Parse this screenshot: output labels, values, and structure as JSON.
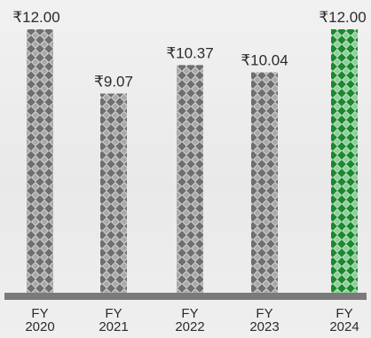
{
  "chart_data": {
    "type": "bar",
    "categories": [
      "FY 2020",
      "FY 2021",
      "FY 2022",
      "FY 2023",
      "FY 2024"
    ],
    "tick_lines": [
      [
        "FY",
        "2020"
      ],
      [
        "FY",
        "2021"
      ],
      [
        "FY",
        "2022"
      ],
      [
        "FY",
        "2023"
      ],
      [
        "FY",
        "2024"
      ]
    ],
    "values": [
      12.0,
      9.07,
      10.37,
      10.04,
      12.0
    ],
    "value_labels": [
      "₹12.00",
      "₹9.07",
      "₹10.37",
      "₹10.04",
      "₹12.00"
    ],
    "title": "",
    "xlabel": "",
    "ylabel": "",
    "ylim": [
      0,
      12
    ],
    "grid": false,
    "highlight_index": 4,
    "colors": {
      "bar_dark": "#6f6f6f",
      "bar_light": "#a9a9a9",
      "highlight_dark": "#1a8a2c",
      "highlight_light": "#8ad19a",
      "baseline": "#7a7a7a",
      "text": "#2b2b2b"
    }
  }
}
